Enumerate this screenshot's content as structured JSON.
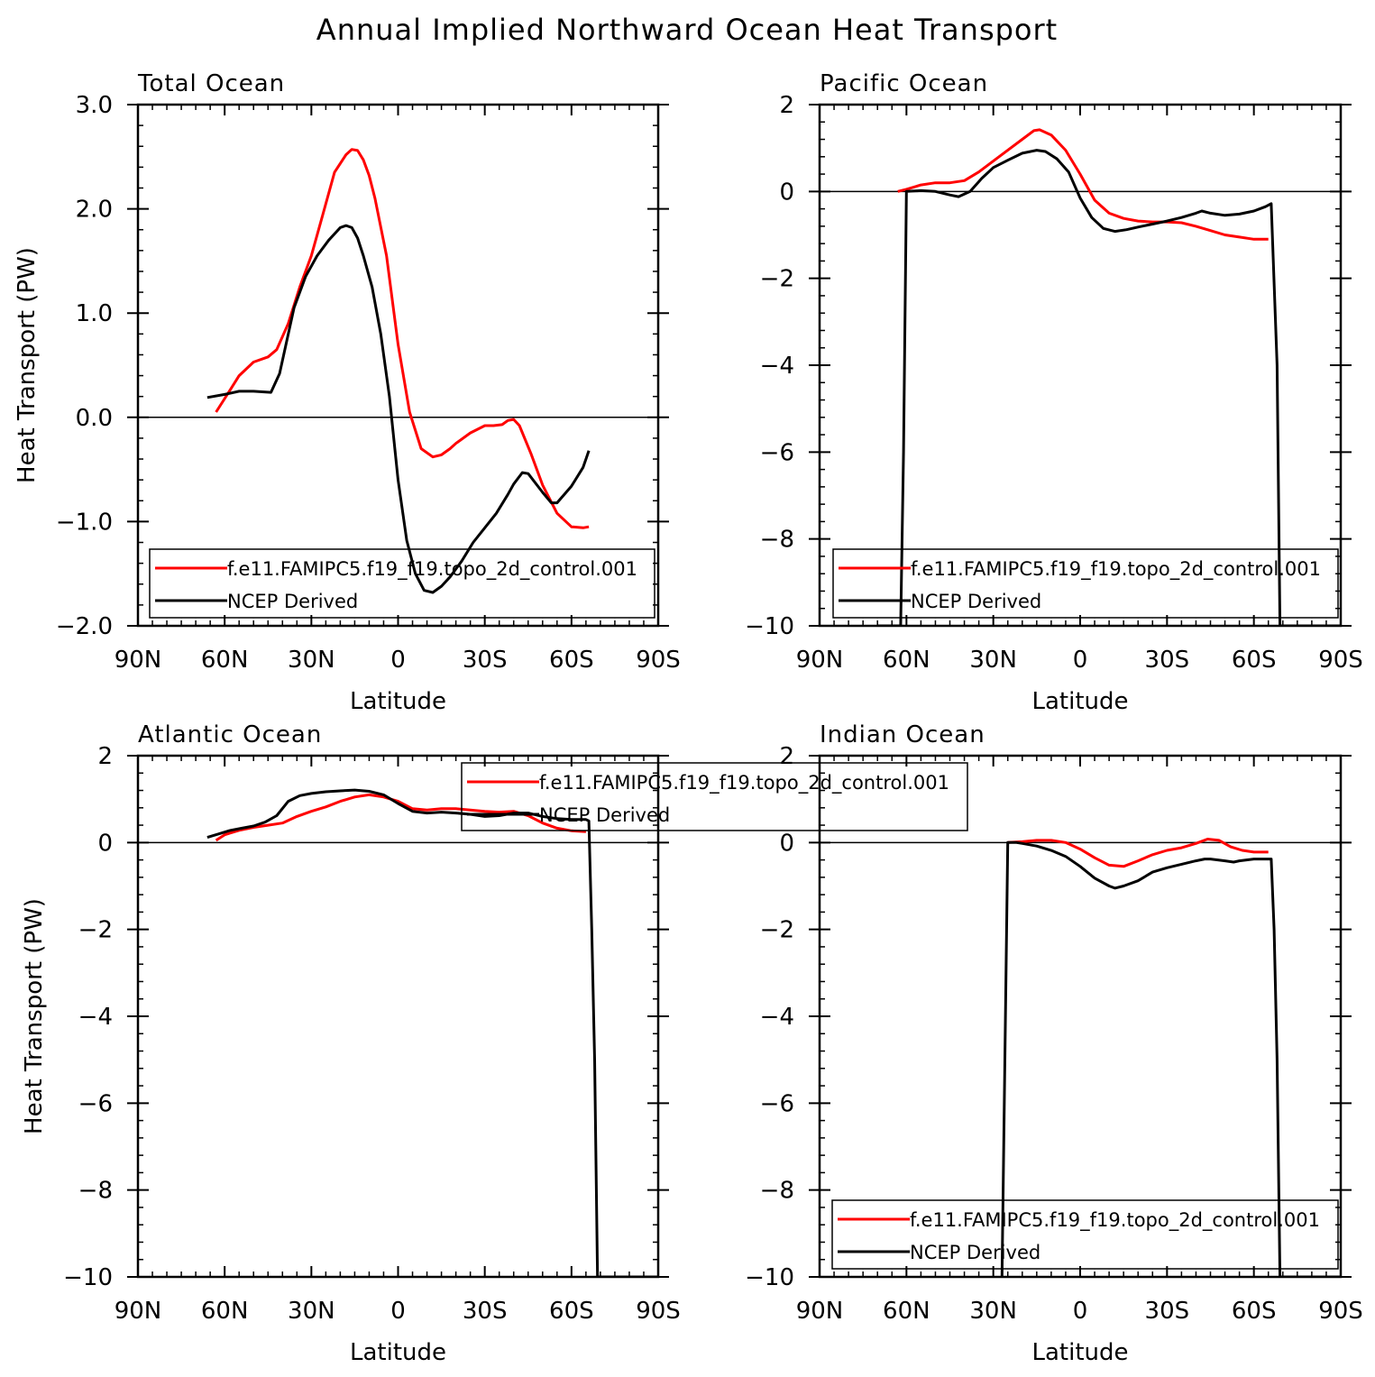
{
  "figure_title": "Annual Implied Northward Ocean Heat Transport",
  "colors": {
    "model": "#ff0000",
    "obs": "#000000"
  },
  "chart_data": [
    {
      "type": "line",
      "title": "Total Ocean",
      "xlabel": "Latitude",
      "ylabel": "Heat Transport (PW)",
      "xlim": [
        90,
        -90
      ],
      "ylim": [
        -2,
        3
      ],
      "xticks": [
        90,
        60,
        30,
        0,
        -30,
        -60,
        -90
      ],
      "xtick_labels": [
        "90N",
        "60N",
        "30N",
        "0",
        "30S",
        "60S",
        "90S"
      ],
      "yticks": [
        -2,
        -1,
        0,
        1,
        2,
        3
      ],
      "ytick_labels": [
        "−2.0",
        "−1.0",
        "0.0",
        "1.0",
        "2.0",
        "3.0"
      ],
      "zero_line": true,
      "legend": {
        "position": "bottom",
        "entries": [
          "f.e11.FAMIPC5.f19_f19.topo_2d_control.001",
          "NCEP Derived"
        ]
      },
      "series": [
        {
          "name": "f.e11.FAMIPC5.f19_f19.topo_2d_control.001",
          "color": "red",
          "x": [
            63,
            60,
            55,
            50,
            45,
            42,
            38,
            34,
            30,
            26,
            22,
            18,
            16,
            14,
            12,
            10,
            8,
            4,
            0,
            -4,
            -8,
            -12,
            -15,
            -18,
            -20,
            -25,
            -30,
            -33,
            -36,
            -38,
            -40,
            -42,
            -46,
            -50,
            -55,
            -60,
            -64,
            -66
          ],
          "y": [
            0.05,
            0.18,
            0.4,
            0.53,
            0.58,
            0.65,
            0.9,
            1.25,
            1.55,
            1.95,
            2.35,
            2.52,
            2.57,
            2.56,
            2.47,
            2.32,
            2.1,
            1.55,
            0.7,
            0.05,
            -0.3,
            -0.38,
            -0.36,
            -0.3,
            -0.25,
            -0.15,
            -0.08,
            -0.08,
            -0.07,
            -0.03,
            -0.02,
            -0.08,
            -0.35,
            -0.65,
            -0.92,
            -1.05,
            -1.06,
            -1.05
          ]
        },
        {
          "name": "NCEP Derived",
          "color": "black",
          "x": [
            66,
            60,
            55,
            50,
            44,
            41,
            36,
            32,
            28,
            24,
            20,
            18,
            16,
            14,
            12,
            9,
            6,
            3,
            0,
            -3,
            -6,
            -9,
            -12,
            -15,
            -18,
            -22,
            -26,
            -30,
            -34,
            -38,
            -40,
            -43,
            -45,
            -50,
            -53,
            -55,
            -60,
            -64,
            -66
          ],
          "y": [
            0.19,
            0.22,
            0.25,
            0.25,
            0.24,
            0.42,
            1.05,
            1.35,
            1.55,
            1.7,
            1.82,
            1.84,
            1.82,
            1.72,
            1.55,
            1.25,
            0.8,
            0.2,
            -0.6,
            -1.18,
            -1.5,
            -1.66,
            -1.68,
            -1.62,
            -1.53,
            -1.38,
            -1.2,
            -1.06,
            -0.92,
            -0.74,
            -0.64,
            -0.53,
            -0.54,
            -0.72,
            -0.82,
            -0.82,
            -0.66,
            -0.48,
            -0.32
          ]
        }
      ]
    },
    {
      "type": "line",
      "title": "Pacific Ocean",
      "xlabel": "Latitude",
      "ylabel": "",
      "xlim": [
        90,
        -90
      ],
      "ylim": [
        -10,
        2
      ],
      "xticks": [
        90,
        60,
        30,
        0,
        -30,
        -60,
        -90
      ],
      "xtick_labels": [
        "90N",
        "60N",
        "30N",
        "0",
        "30S",
        "60S",
        "90S"
      ],
      "yticks": [
        -10,
        -8,
        -6,
        -4,
        -2,
        0,
        2
      ],
      "ytick_labels": [
        "−10",
        "−8",
        "−6",
        "−4",
        "−2",
        "0",
        "2"
      ],
      "zero_line": true,
      "legend": {
        "position": "bottom",
        "entries": [
          "f.e11.FAMIPC5.f19_f19.topo_2d_control.001",
          "NCEP Derived"
        ]
      },
      "series": [
        {
          "name": "f.e11.FAMIPC5.f19_f19.topo_2d_control.001",
          "color": "red",
          "x": [
            63,
            60,
            55,
            50,
            45,
            40,
            35,
            30,
            25,
            20,
            16,
            14,
            10,
            5,
            0,
            -5,
            -10,
            -15,
            -20,
            -25,
            -30,
            -35,
            -40,
            -45,
            -50,
            -55,
            -60,
            -65
          ],
          "y": [
            0.0,
            0.05,
            0.15,
            0.2,
            0.2,
            0.25,
            0.45,
            0.7,
            0.95,
            1.2,
            1.4,
            1.42,
            1.3,
            0.95,
            0.4,
            -0.2,
            -0.5,
            -0.62,
            -0.68,
            -0.7,
            -0.7,
            -0.72,
            -0.8,
            -0.9,
            -1.0,
            -1.05,
            -1.1,
            -1.1
          ]
        },
        {
          "name": "NCEP Derived",
          "color": "black",
          "x": [
            70,
            69,
            67,
            66,
            62,
            61,
            60,
            55,
            50,
            45,
            42,
            38,
            34,
            30,
            25,
            20,
            15,
            12,
            8,
            4,
            0,
            -4,
            -8,
            -12,
            -16,
            -20,
            -25,
            -30,
            -35,
            -40,
            -42,
            -45,
            -50,
            -55,
            -60,
            -64,
            -66,
            -68,
            -69,
            -70,
            -72,
            -80,
            -90
          ],
          "y": [
            -10,
            -10,
            -10,
            -10,
            -10,
            -6,
            0.0,
            0.02,
            0.0,
            -0.08,
            -0.12,
            0.0,
            0.3,
            0.55,
            0.72,
            0.88,
            0.95,
            0.92,
            0.75,
            0.45,
            -0.15,
            -0.6,
            -0.85,
            -0.92,
            -0.88,
            -0.82,
            -0.75,
            -0.68,
            -0.6,
            -0.5,
            -0.45,
            -0.5,
            -0.55,
            -0.52,
            -0.45,
            -0.35,
            -0.28,
            -4,
            -10,
            -10,
            -10,
            -10,
            -10
          ]
        }
      ]
    },
    {
      "type": "line",
      "title": "Atlantic Ocean",
      "xlabel": "Latitude",
      "ylabel": "Heat Transport (PW)",
      "xlim": [
        90,
        -90
      ],
      "ylim": [
        -10,
        2
      ],
      "xticks": [
        90,
        60,
        30,
        0,
        -30,
        -60,
        -90
      ],
      "xtick_labels": [
        "90N",
        "60N",
        "30N",
        "0",
        "30S",
        "60S",
        "90S"
      ],
      "yticks": [
        -10,
        -8,
        -6,
        -4,
        -2,
        0,
        2
      ],
      "ytick_labels": [
        "−10",
        "−8",
        "−6",
        "−4",
        "−2",
        "0",
        "2"
      ],
      "zero_line": true,
      "legend": {
        "position": "top-center",
        "entries": [
          "f.e11.FAMIPC5.f19_f19.topo_2d_control.001",
          "NCEP Derived"
        ]
      },
      "series": [
        {
          "name": "f.e11.FAMIPC5.f19_f19.topo_2d_control.001",
          "color": "red",
          "x": [
            63,
            60,
            55,
            50,
            45,
            40,
            35,
            30,
            25,
            20,
            15,
            10,
            5,
            0,
            -5,
            -10,
            -15,
            -20,
            -25,
            -30,
            -35,
            -40,
            -45,
            -50,
            -55,
            -60,
            -65
          ],
          "y": [
            0.05,
            0.18,
            0.28,
            0.35,
            0.4,
            0.45,
            0.6,
            0.72,
            0.82,
            0.95,
            1.05,
            1.1,
            1.05,
            0.95,
            0.78,
            0.75,
            0.78,
            0.78,
            0.75,
            0.72,
            0.7,
            0.72,
            0.62,
            0.45,
            0.33,
            0.27,
            0.25
          ]
        },
        {
          "name": "NCEP Derived",
          "color": "black",
          "x": [
            66,
            62,
            58,
            54,
            50,
            46,
            42,
            38,
            34,
            30,
            25,
            20,
            15,
            10,
            5,
            0,
            -5,
            -10,
            -15,
            -20,
            -25,
            -30,
            -35,
            -40,
            -45,
            -50,
            -55,
            -60,
            -65,
            -66,
            -67,
            -68,
            -69,
            -70,
            -75,
            -90
          ],
          "y": [
            0.12,
            0.2,
            0.28,
            0.33,
            0.38,
            0.47,
            0.62,
            0.95,
            1.08,
            1.13,
            1.17,
            1.19,
            1.21,
            1.18,
            1.1,
            0.9,
            0.72,
            0.68,
            0.7,
            0.68,
            0.65,
            0.6,
            0.62,
            0.68,
            0.68,
            0.6,
            0.55,
            0.53,
            0.53,
            0.5,
            -2,
            -5,
            -10,
            -10,
            -10,
            -10
          ]
        }
      ]
    },
    {
      "type": "line",
      "title": "Indian Ocean",
      "xlabel": "Latitude",
      "ylabel": "",
      "xlim": [
        90,
        -90
      ],
      "ylim": [
        -10,
        2
      ],
      "xticks": [
        90,
        60,
        30,
        0,
        -30,
        -60,
        -90
      ],
      "xtick_labels": [
        "90N",
        "60N",
        "30N",
        "0",
        "30S",
        "60S",
        "90S"
      ],
      "yticks": [
        -10,
        -8,
        -6,
        -4,
        -2,
        0,
        2
      ],
      "ytick_labels": [
        "−10",
        "−8",
        "−6",
        "−4",
        "−2",
        "0",
        "2"
      ],
      "zero_line": true,
      "legend": {
        "position": "bottom",
        "entries": [
          "f.e11.FAMIPC5.f19_f19.topo_2d_control.001",
          "NCEP Derived"
        ]
      },
      "series": [
        {
          "name": "f.e11.FAMIPC5.f19_f19.topo_2d_control.001",
          "color": "red",
          "x": [
            25,
            20,
            15,
            10,
            5,
            0,
            -5,
            -10,
            -15,
            -20,
            -25,
            -30,
            -35,
            -40,
            -44,
            -48,
            -52,
            -56,
            -60,
            -65
          ],
          "y": [
            0.0,
            0.02,
            0.05,
            0.05,
            0.0,
            -0.15,
            -0.35,
            -0.52,
            -0.55,
            -0.42,
            -0.28,
            -0.18,
            -0.12,
            -0.02,
            0.08,
            0.05,
            -0.1,
            -0.18,
            -0.22,
            -0.22
          ]
        },
        {
          "name": "NCEP Derived",
          "color": "black",
          "x": [
            27,
            25,
            22,
            20,
            15,
            10,
            5,
            0,
            -5,
            -10,
            -12,
            -15,
            -20,
            -25,
            -30,
            -35,
            -40,
            -43,
            -45,
            -50,
            -53,
            -55,
            -60,
            -65,
            -66,
            -67,
            -68,
            -69,
            -70,
            -75,
            -90
          ],
          "y": [
            -10,
            0.0,
            0.0,
            -0.02,
            -0.08,
            -0.18,
            -0.32,
            -0.55,
            -0.82,
            -1.0,
            -1.05,
            -1.0,
            -0.88,
            -0.68,
            -0.58,
            -0.5,
            -0.42,
            -0.38,
            -0.38,
            -0.42,
            -0.45,
            -0.42,
            -0.38,
            -0.38,
            -0.38,
            -2,
            -5,
            -10,
            -10,
            -10,
            -10
          ]
        }
      ]
    }
  ]
}
